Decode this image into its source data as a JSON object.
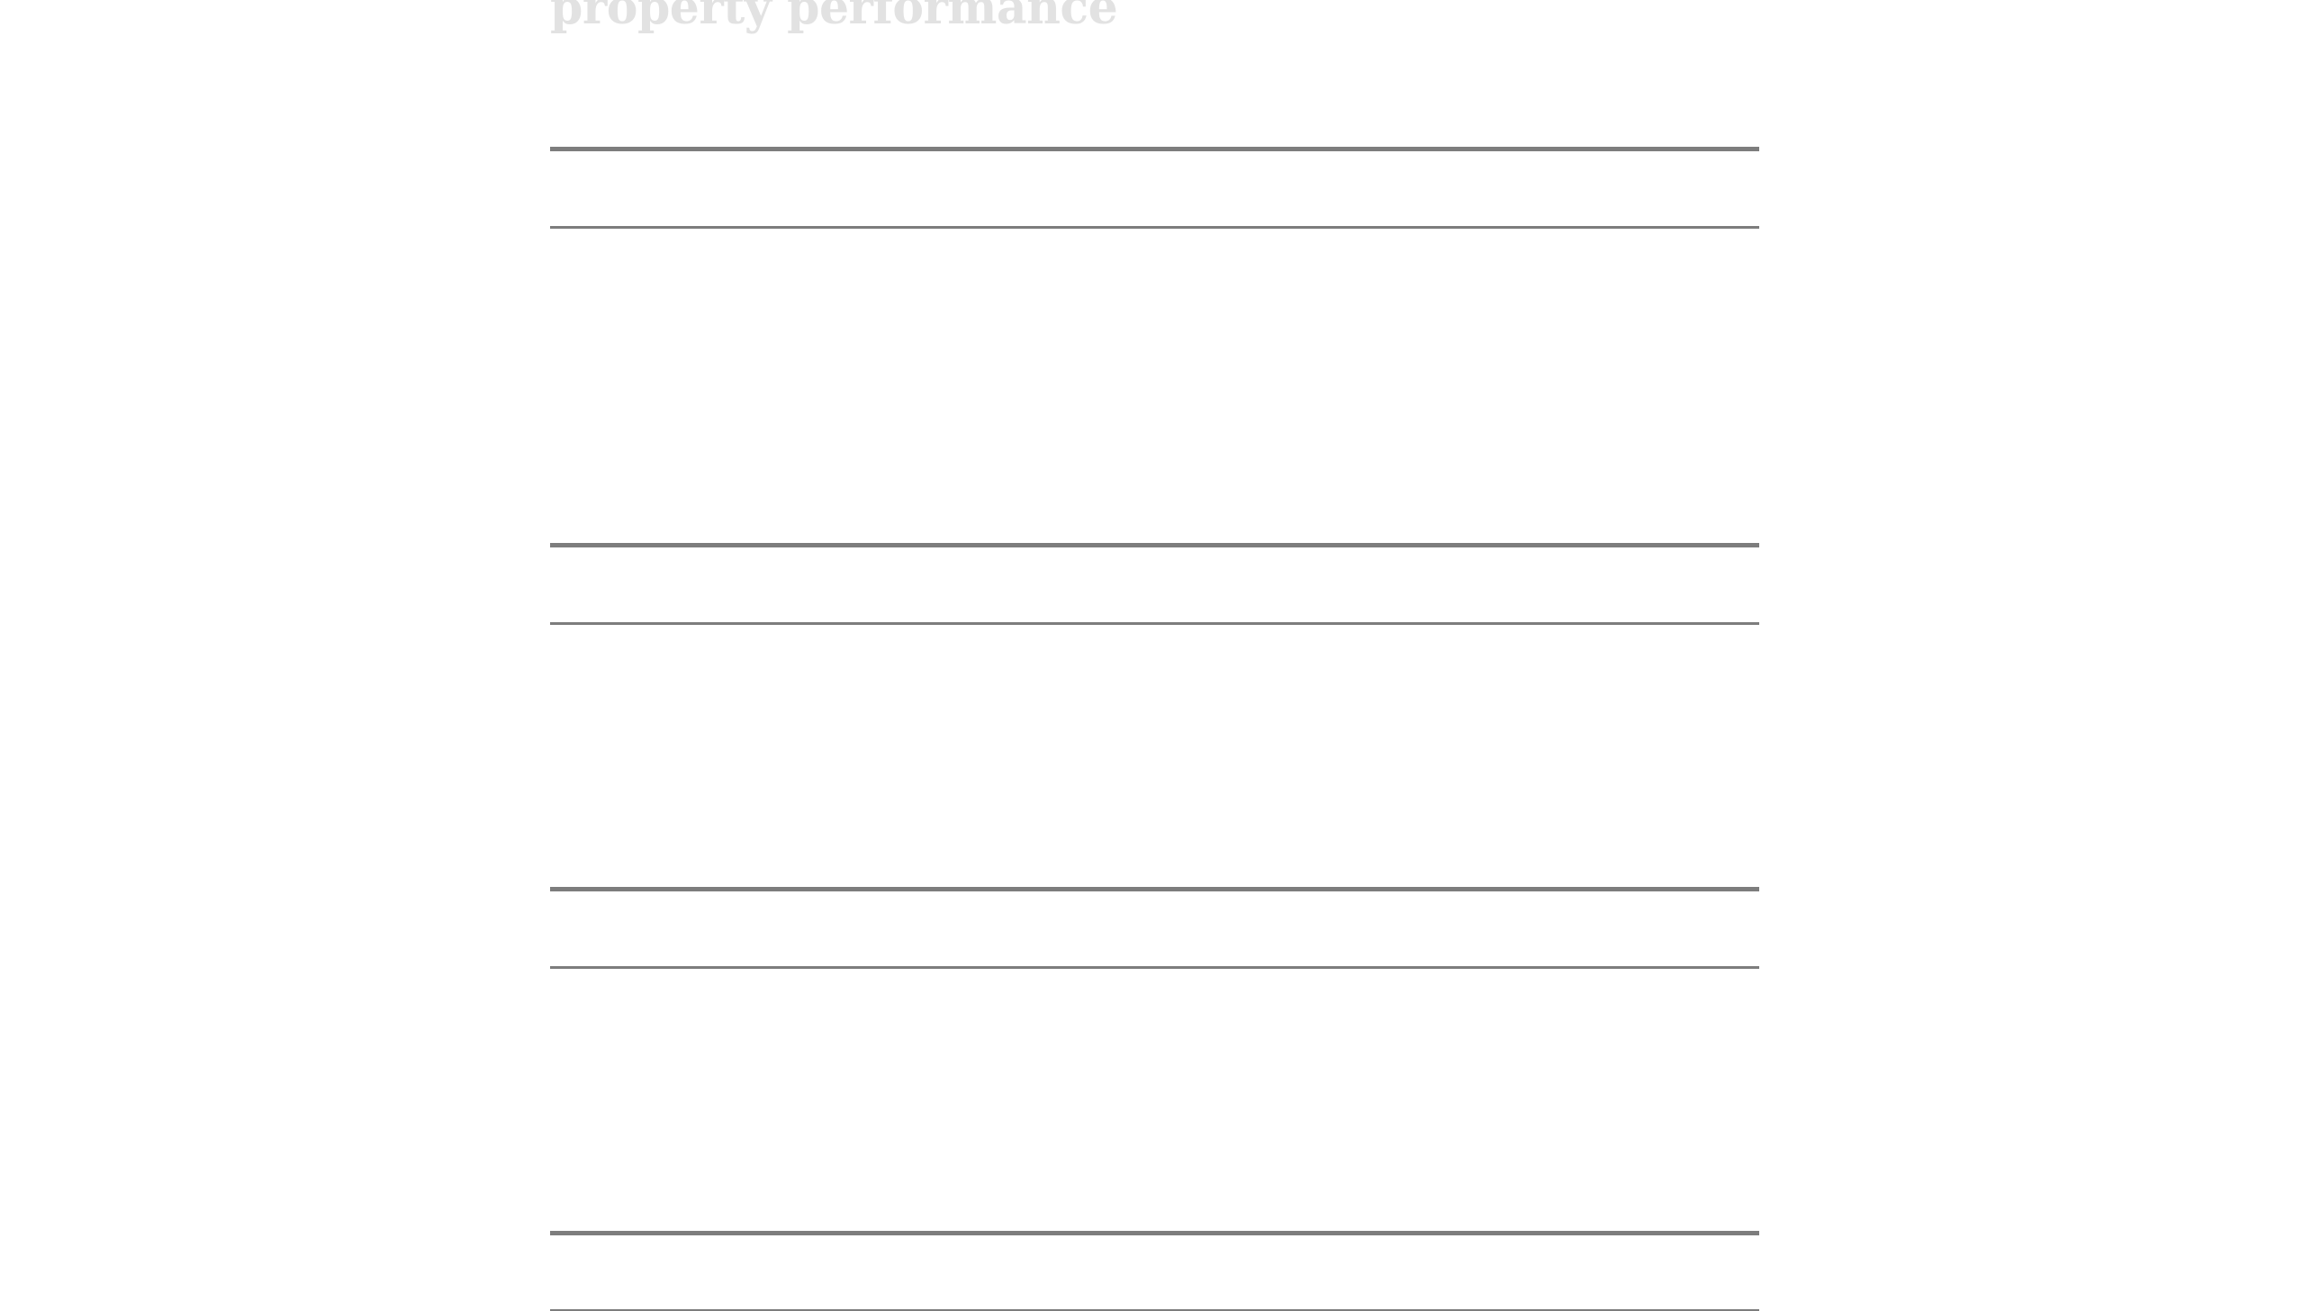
{
  "page": {
    "title": "property performance"
  }
}
